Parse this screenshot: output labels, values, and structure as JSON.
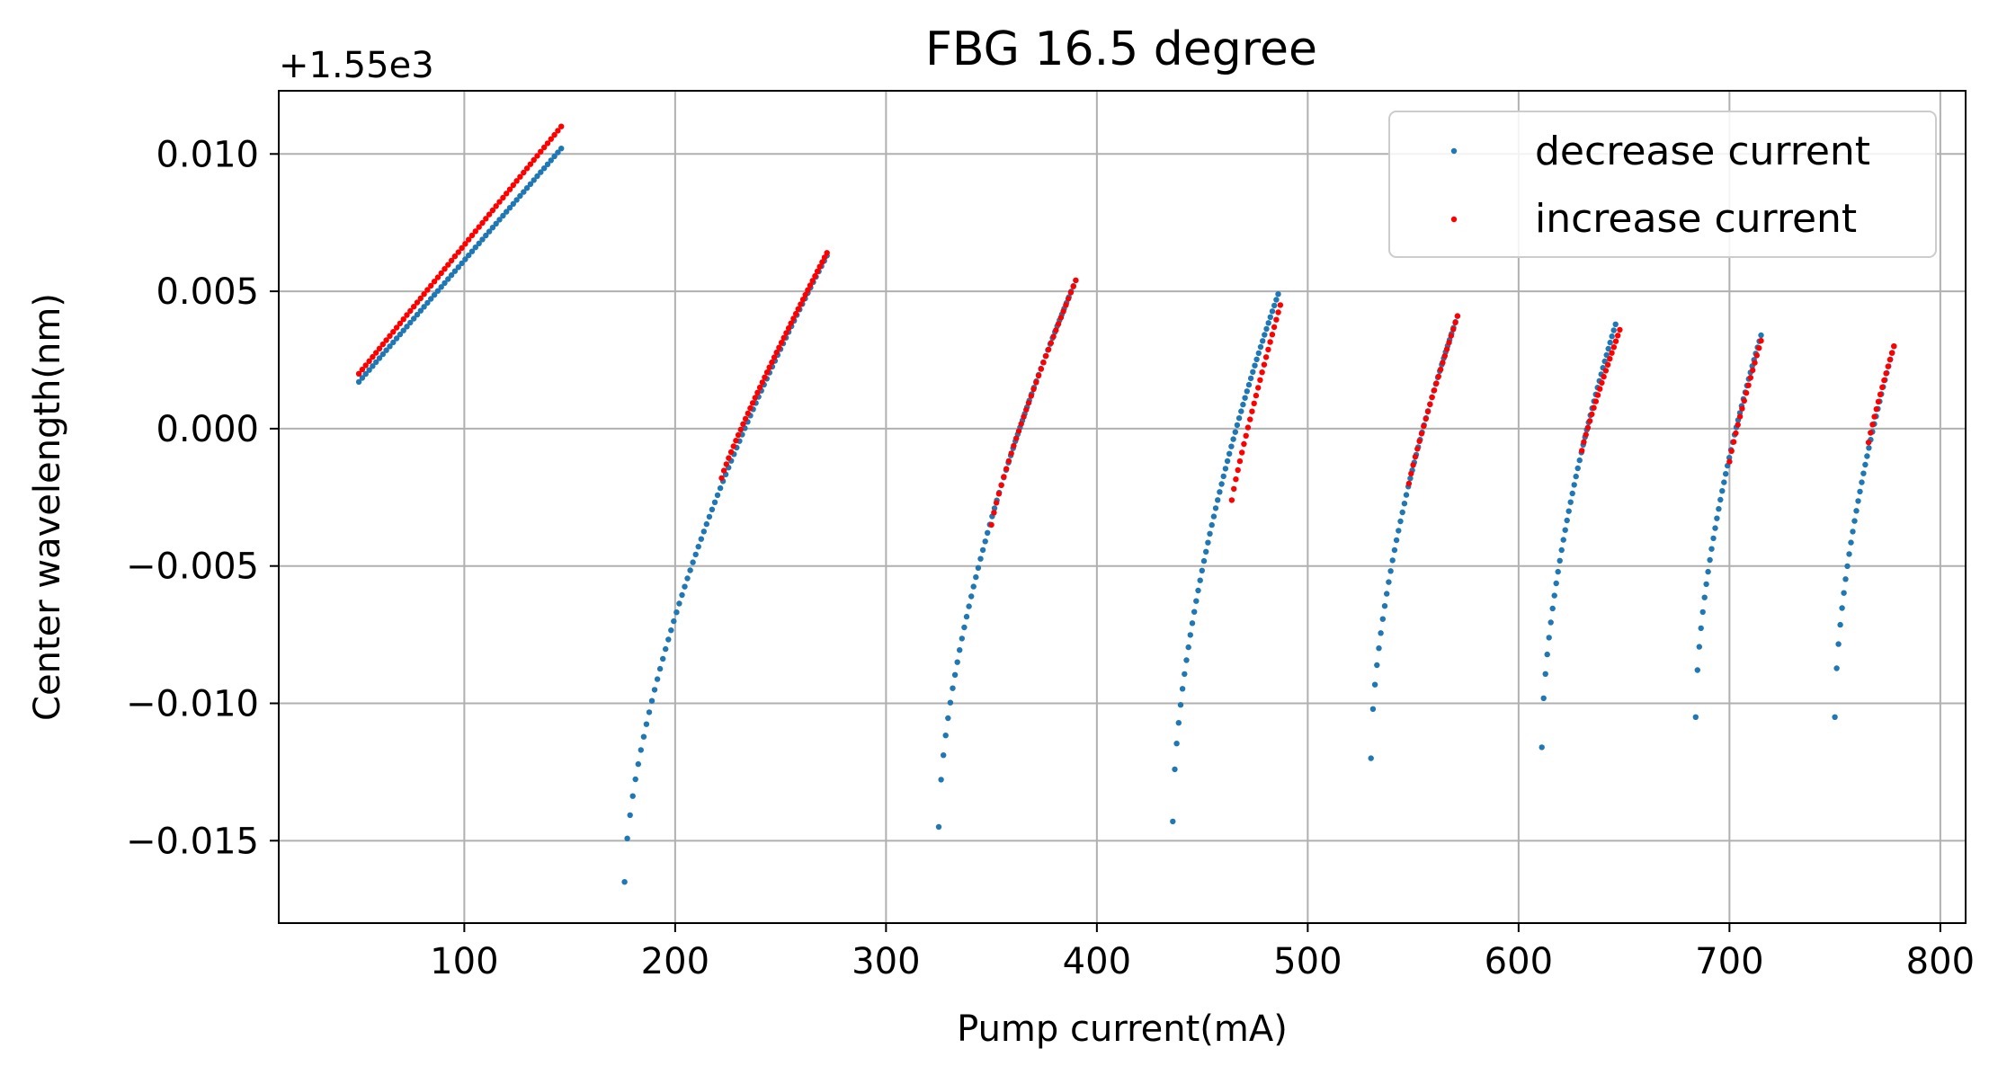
{
  "chart_data": {
    "type": "scatter",
    "title": "FBG 16.5 degree",
    "xlabel": "Pump current(mA)",
    "ylabel": "Center wavelength(nm)",
    "y_offset_text": "+1.55e3",
    "y_offset": 1550,
    "xlim": [
      12,
      812
    ],
    "ylim": [
      -0.018,
      0.0123
    ],
    "x_ticks": [
      100,
      200,
      300,
      400,
      500,
      600,
      700,
      800
    ],
    "x_tick_labels": [
      "100",
      "200",
      "300",
      "400",
      "500",
      "600",
      "700",
      "800"
    ],
    "y_ticks": [
      -0.015,
      -0.01,
      -0.005,
      0.0,
      0.005,
      0.01
    ],
    "y_tick_labels": [
      "−0.015",
      "−0.010",
      "−0.005",
      "0.000",
      "0.005",
      "0.010"
    ],
    "grid": true,
    "legend_position": "upper-right",
    "series": [
      {
        "name": "decrease current",
        "color": "#1f77b4",
        "segments": [
          {
            "x_start": 50,
            "x_end": 146,
            "y_start": 0.0017,
            "y_end": 0.0102,
            "curve": 1.0,
            "n": 60
          },
          {
            "x_start": 176,
            "x_end": 272,
            "y_start": -0.0165,
            "y_end": 0.0063,
            "curve": 0.62,
            "n": 75
          },
          {
            "x_start": 325,
            "x_end": 390,
            "y_start": -0.0145,
            "y_end": 0.0054,
            "curve": 0.6,
            "n": 60
          },
          {
            "x_start": 436,
            "x_end": 486,
            "y_start": -0.0143,
            "y_end": 0.0049,
            "curve": 0.58,
            "n": 55
          },
          {
            "x_start": 530,
            "x_end": 571,
            "y_start": -0.012,
            "y_end": 0.0041,
            "curve": 0.58,
            "n": 45
          },
          {
            "x_start": 611,
            "x_end": 646,
            "y_start": -0.0116,
            "y_end": 0.0038,
            "curve": 0.58,
            "n": 42
          },
          {
            "x_start": 684,
            "x_end": 715,
            "y_start": -0.0105,
            "y_end": 0.0034,
            "curve": 0.58,
            "n": 38
          },
          {
            "x_start": 750,
            "x_end": 778,
            "y_start": -0.0105,
            "y_end": 0.003,
            "curve": 0.58,
            "n": 34
          }
        ]
      },
      {
        "name": "increase current",
        "color": "#ff0000",
        "segments": [
          {
            "x_start": 50,
            "x_end": 146,
            "y_start": 0.002,
            "y_end": 0.011,
            "curve": 1.0,
            "n": 60
          },
          {
            "x_start": 222,
            "x_end": 272,
            "y_start": -0.0018,
            "y_end": 0.0064,
            "curve": 0.9,
            "n": 45
          },
          {
            "x_start": 350,
            "x_end": 390,
            "y_start": -0.0035,
            "y_end": 0.0054,
            "curve": 0.85,
            "n": 35
          },
          {
            "x_start": 464,
            "x_end": 487,
            "y_start": -0.0026,
            "y_end": 0.0045,
            "curve": 0.9,
            "n": 25
          },
          {
            "x_start": 548,
            "x_end": 571,
            "y_start": -0.002,
            "y_end": 0.0041,
            "curve": 0.9,
            "n": 24
          },
          {
            "x_start": 630,
            "x_end": 648,
            "y_start": -0.0008,
            "y_end": 0.0036,
            "curve": 0.9,
            "n": 20
          },
          {
            "x_start": 700,
            "x_end": 715,
            "y_start": -0.0012,
            "y_end": 0.0032,
            "curve": 0.9,
            "n": 16
          },
          {
            "x_start": 766,
            "x_end": 778,
            "y_start": -0.0005,
            "y_end": 0.003,
            "curve": 0.9,
            "n": 14
          }
        ]
      }
    ]
  }
}
